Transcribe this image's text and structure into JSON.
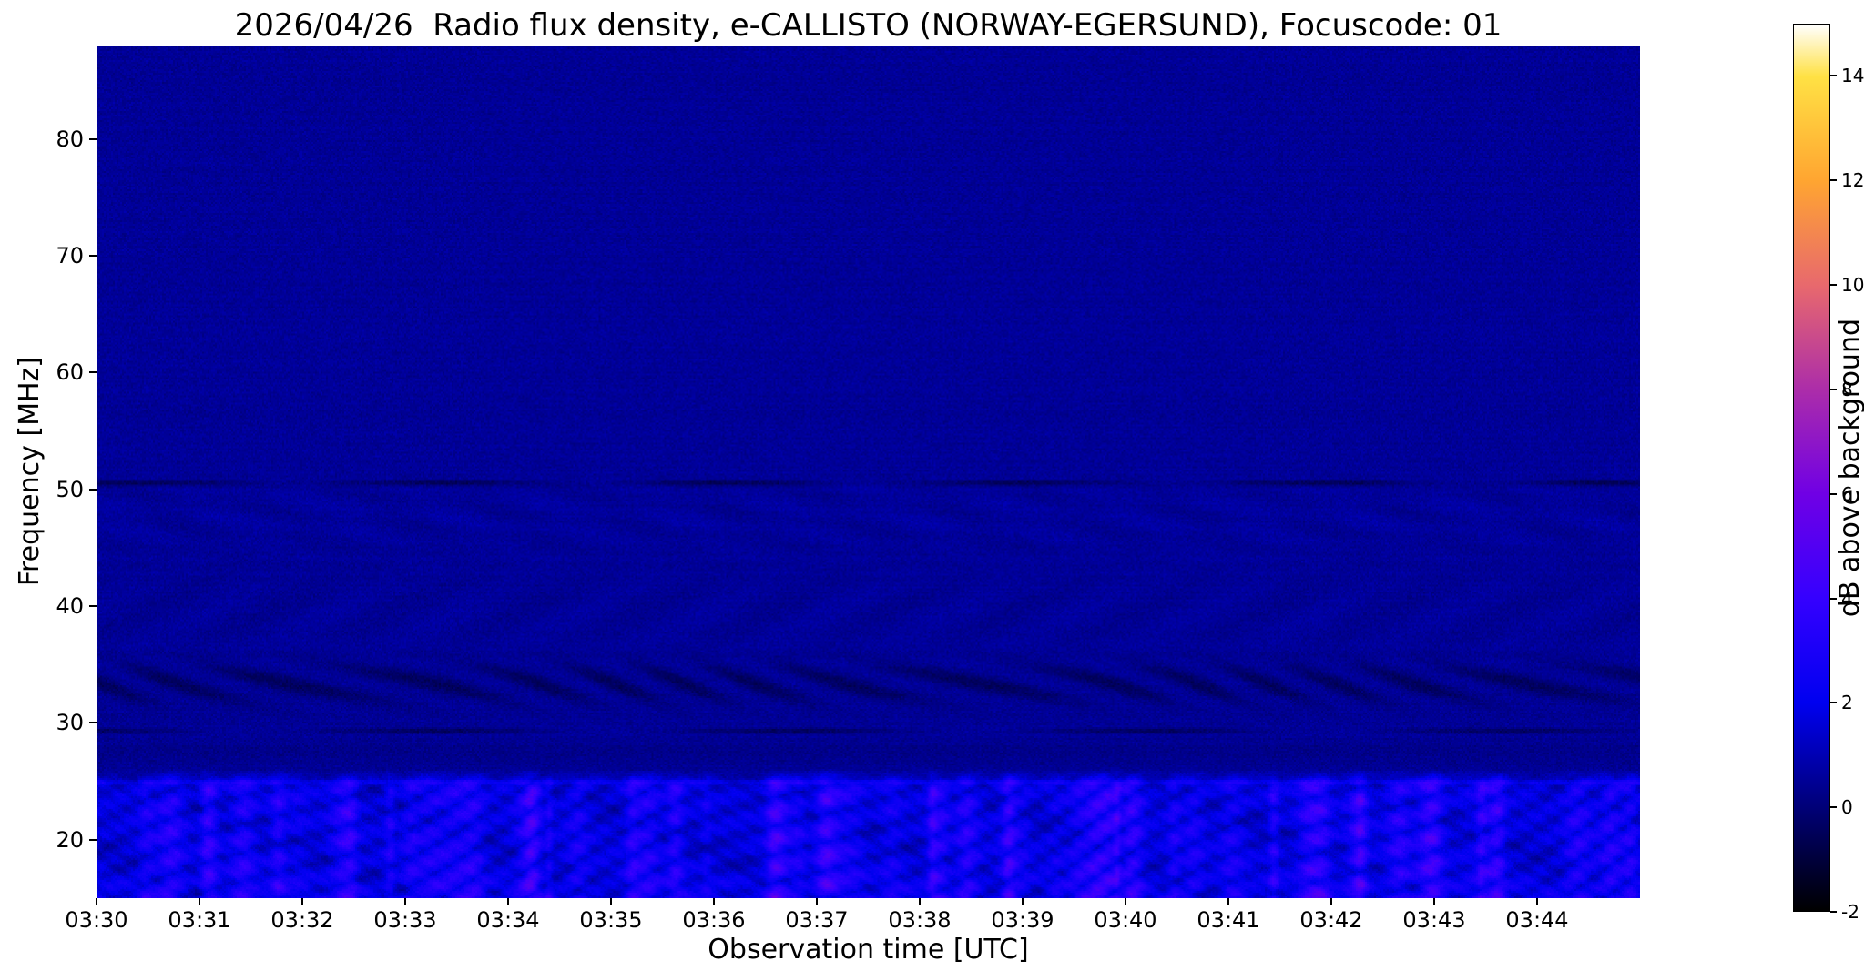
{
  "chart_data": {
    "type": "heatmap",
    "title": "2026/04/26  Radio flux density, e-CALLISTO (NORWAY-EGERSUND), Focuscode: 01",
    "xlabel": "Observation time [UTC]",
    "ylabel": "Frequency [MHz]",
    "x_ticks": [
      "03:30",
      "03:31",
      "03:32",
      "03:33",
      "03:34",
      "03:35",
      "03:36",
      "03:37",
      "03:38",
      "03:39",
      "03:40",
      "03:41",
      "03:42",
      "03:43",
      "03:44"
    ],
    "x_range_minutes": [
      0,
      15
    ],
    "y_ticks": [
      80,
      70,
      60,
      50,
      40,
      30,
      20
    ],
    "y_range_mhz": [
      15,
      88
    ],
    "grid": false,
    "colorbar": {
      "label": "dB above background",
      "ticks": [
        14,
        12,
        10,
        8,
        6,
        4,
        2,
        0,
        -2
      ],
      "range": [
        -2,
        15
      ],
      "colormap": "gnuplot2",
      "stops": [
        {
          "v": -2,
          "color": "#000000"
        },
        {
          "v": 0,
          "color": "#000078"
        },
        {
          "v": 2,
          "color": "#0000f0"
        },
        {
          "v": 4,
          "color": "#3500ff"
        },
        {
          "v": 6,
          "color": "#7000e5"
        },
        {
          "v": 8,
          "color": "#ac2da9"
        },
        {
          "v": 10,
          "color": "#e8696d"
        },
        {
          "v": 12,
          "color": "#ffa531"
        },
        {
          "v": 14,
          "color": "#ffe144"
        },
        {
          "v": 15,
          "color": "#ffffff"
        }
      ]
    },
    "spectrogram_features": [
      {
        "region_mhz": [
          55,
          88
        ],
        "description": "uniform quiet dark-blue background noise",
        "mean_db": 0.5
      },
      {
        "region_mhz": [
          43,
          53
        ],
        "description": "faint patchy blue mottling",
        "mean_db": 0.9
      },
      {
        "line_mhz": 50.6,
        "description": "intermittent dark horizontal absorption line",
        "mean_db": -0.8
      },
      {
        "region_mhz": [
          36,
          43
        ],
        "description": "weak wavy modulation",
        "mean_db": 0.7
      },
      {
        "region_mhz": [
          31,
          35.5
        ],
        "description": "dark wavy interference chevrons drifting in time",
        "mean_db": -0.4
      },
      {
        "line_mhz": 29.3,
        "description": "dark horizontal line",
        "mean_db": -0.6
      },
      {
        "line_mhz": 24.9,
        "description": "bright narrow line at top edge of HF band",
        "mean_db": 2.0
      },
      {
        "region_mhz": [
          15,
          26
        ],
        "description": "bright blue wavy HF interference with vertical RFI streaks and dark gaps",
        "mean_db": 2.5
      }
    ]
  }
}
